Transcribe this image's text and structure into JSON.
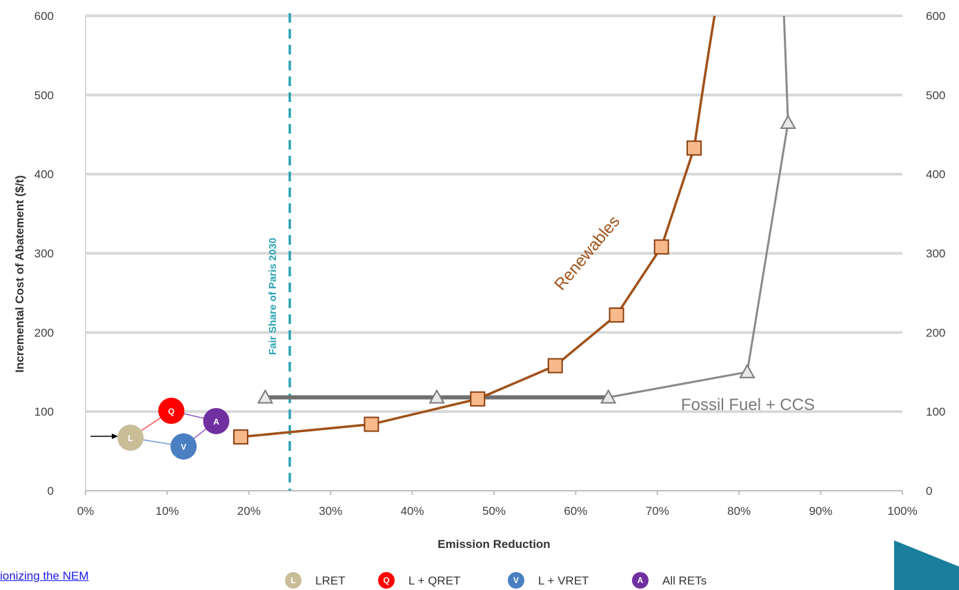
{
  "chart_data": {
    "type": "line",
    "xlabel": "Emission Reduction",
    "ylabel": "Incremental Cost of Abatement ($/t)",
    "xlim": [
      0,
      100
    ],
    "ylim": [
      0,
      600
    ],
    "x_ticks": [
      0,
      10,
      20,
      30,
      40,
      50,
      60,
      70,
      80,
      90,
      100
    ],
    "x_tick_labels": [
      "0%",
      "10%",
      "20%",
      "30%",
      "40%",
      "50%",
      "60%",
      "70%",
      "80%",
      "90%",
      "100%"
    ],
    "y_ticks": [
      0,
      100,
      200,
      300,
      400,
      500,
      600
    ],
    "y_tick_labels": [
      "0",
      "100",
      "200",
      "300",
      "400",
      "500",
      "600"
    ],
    "grid": "horizontal",
    "series": [
      {
        "name": "Renewables",
        "color": "#a0521a",
        "marker": "square",
        "marker_color": "#f7b98a",
        "points": [
          [
            19,
            68
          ],
          [
            35,
            84
          ],
          [
            48,
            116
          ],
          [
            57.5,
            158
          ],
          [
            65,
            222
          ],
          [
            70.5,
            308
          ],
          [
            74.5,
            433
          ]
        ],
        "extends_to": [
          77,
          600
        ]
      },
      {
        "name": "Fossil Fuel + CCS",
        "color": "#8a8a8a",
        "marker": "triangle",
        "points": [
          [
            22,
            118
          ],
          [
            43,
            118
          ],
          [
            64,
            118
          ],
          [
            81,
            150
          ],
          [
            86,
            465
          ]
        ],
        "extends_to": [
          85.5,
          600
        ],
        "flat_segment": [
          22,
          64
        ]
      },
      {
        "name": "RET scenarios",
        "points": [
          {
            "key": "L",
            "x": 5.5,
            "y": 67,
            "color": "#c9bd98"
          },
          {
            "key": "Q",
            "x": 10.5,
            "y": 101,
            "color": "#ff0000"
          },
          {
            "key": "V",
            "x": 12,
            "y": 56,
            "color": "#4a7fc1"
          },
          {
            "key": "A",
            "x": 16,
            "y": 88,
            "color": "#7030a0"
          }
        ]
      }
    ],
    "reference_line": {
      "x": 25,
      "label": "Fair Share of Paris 2030",
      "color": "#2aa3b3"
    },
    "legend": {
      "placement": "bottom",
      "entries": [
        {
          "symbol": "L",
          "label": "LRET",
          "color": "#c9bd98"
        },
        {
          "symbol": "Q",
          "label": "L + QRET",
          "color": "#ff0000"
        },
        {
          "symbol": "V",
          "label": "L + VRET",
          "color": "#4a7fc1"
        },
        {
          "symbol": "A",
          "label": "All RETs",
          "color": "#7030a0"
        }
      ]
    }
  },
  "labels": {
    "renewables": "Renewables",
    "fossil": "Fossil Fuel + CCS"
  },
  "footer": {
    "link_text": "ionizing the NEM"
  },
  "colors": {
    "grid": "#d9d9d9",
    "corner_accent": "#1a7f9c"
  }
}
